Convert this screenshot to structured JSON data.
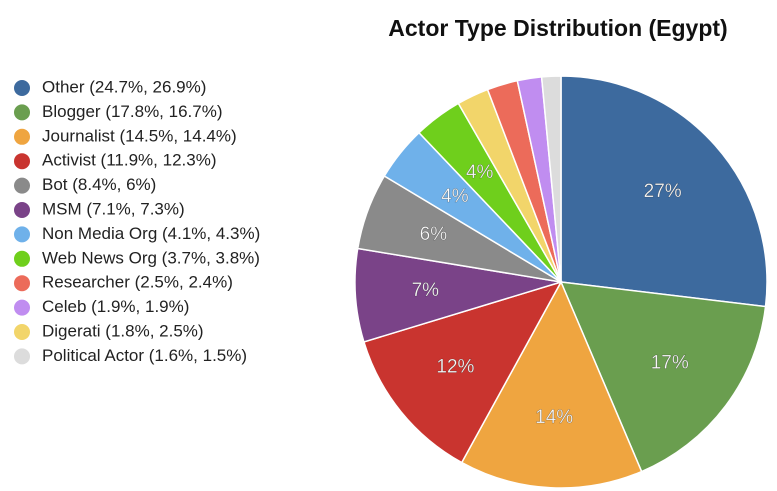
{
  "chart_data": {
    "type": "pie",
    "title": "Actor Type Distribution (Egypt)",
    "categories": [
      "Other",
      "Blogger",
      "Journalist",
      "Activist",
      "MSM",
      "Bot",
      "Non Media Org",
      "Web News Org",
      "Digerati",
      "Researcher",
      "Celeb",
      "Political Actor"
    ],
    "values": [
      26.9,
      16.7,
      14.4,
      12.3,
      7.3,
      6,
      4.3,
      3.8,
      2.5,
      2.4,
      1.9,
      1.5
    ],
    "value_labels": [
      "27%",
      "17%",
      "14%",
      "12%",
      "7%",
      "6%",
      "4%",
      "4%",
      null,
      null,
      null,
      null
    ],
    "colors": [
      "#3d6a9e",
      "#6a9e4f",
      "#efa540",
      "#c9342f",
      "#7a4388",
      "#8a8a8a",
      "#6fb1ea",
      "#6fcf1c",
      "#f2d56a",
      "#ec6b5a",
      "#c08df0",
      "#dcdcdc"
    ],
    "legend": [
      {
        "label": "Other (24.7%, 26.9%)",
        "color": "#3d6a9e"
      },
      {
        "label": "Blogger (17.8%, 16.7%)",
        "color": "#6a9e4f"
      },
      {
        "label": "Journalist (14.5%, 14.4%)",
        "color": "#efa540"
      },
      {
        "label": "Activist (11.9%, 12.3%)",
        "color": "#c9342f"
      },
      {
        "label": "Bot (8.4%, 6%)",
        "color": "#8a8a8a"
      },
      {
        "label": "MSM (7.1%, 7.3%)",
        "color": "#7a4388"
      },
      {
        "label": "Non Media Org (4.1%, 4.3%)",
        "color": "#6fb1ea"
      },
      {
        "label": "Web News Org (3.7%, 3.8%)",
        "color": "#6fcf1c"
      },
      {
        "label": "Researcher (2.5%, 2.4%)",
        "color": "#ec6b5a"
      },
      {
        "label": "Celeb (1.9%, 1.9%)",
        "color": "#c08df0"
      },
      {
        "label": "Digerati (1.8%, 2.5%)",
        "color": "#f2d56a"
      },
      {
        "label": "Political Actor (1.6%, 1.5%)",
        "color": "#dcdcdc"
      }
    ]
  }
}
